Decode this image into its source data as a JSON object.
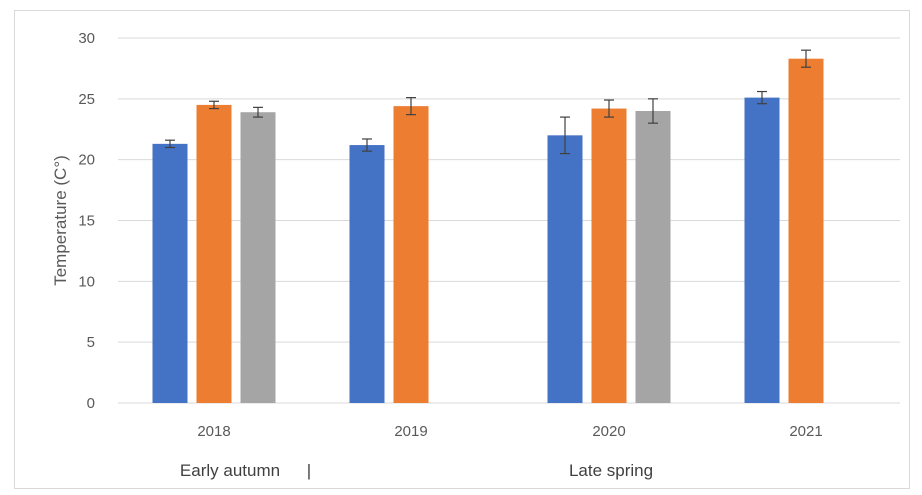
{
  "chart_data": {
    "type": "bar",
    "title": "",
    "ylabel": "Temperature (C°)",
    "xlabel": "",
    "ylim": [
      0,
      30
    ],
    "yticks": [
      0,
      5,
      10,
      15,
      20,
      25,
      30
    ],
    "categories": [
      "2018",
      "2019",
      "2020",
      "2021"
    ],
    "series": [
      {
        "color": "#4472c4",
        "values": [
          21.3,
          21.2,
          22.0,
          25.1
        ],
        "errors": [
          0.3,
          0.5,
          1.5,
          0.5
        ]
      },
      {
        "color": "#ed7d31",
        "values": [
          24.5,
          24.4,
          24.2,
          28.3
        ],
        "errors": [
          0.3,
          0.7,
          0.7,
          0.7
        ]
      },
      {
        "color": "#a5a5a5",
        "values": [
          23.9,
          null,
          24.0,
          null
        ],
        "errors": [
          0.4,
          null,
          1.0,
          null
        ]
      }
    ],
    "grid": true,
    "legend": "none",
    "season_labels": [
      "Early autumn",
      "|",
      "Late spring"
    ]
  }
}
